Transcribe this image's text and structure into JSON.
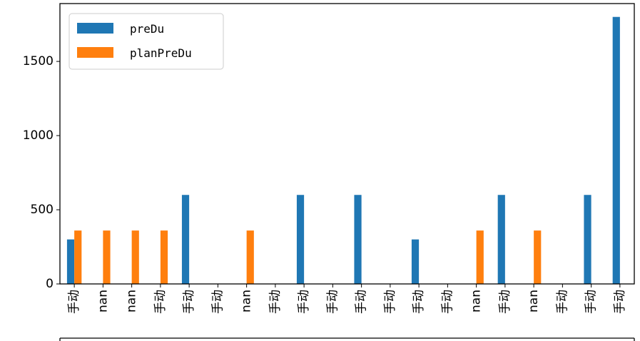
{
  "chart_data": {
    "type": "bar",
    "categories": [
      "手动",
      "nan",
      "nan",
      "手动",
      "手动",
      "手动",
      "nan",
      "手动",
      "手动",
      "手动",
      "手动",
      "手动",
      "手动",
      "手动",
      "nan",
      "手动",
      "nan",
      "手动",
      "手动",
      "手动"
    ],
    "series": [
      {
        "name": "preDu",
        "color": "#1f77b4",
        "values": [
          300,
          0,
          0,
          0,
          600,
          0,
          0,
          0,
          600,
          0,
          600,
          0,
          300,
          0,
          0,
          600,
          0,
          0,
          600,
          1800
        ]
      },
      {
        "name": "planPreDu",
        "color": "#ff7f0e",
        "values": [
          360,
          360,
          360,
          360,
          0,
          0,
          360,
          0,
          0,
          0,
          0,
          0,
          0,
          0,
          360,
          0,
          360,
          0,
          0,
          0
        ]
      }
    ],
    "yticks": [
      0,
      500,
      1000,
      1500
    ],
    "ylim": [
      0,
      1890
    ],
    "title": "",
    "xlabel": "",
    "ylabel": "",
    "legend": "top-left",
    "grid": false
  }
}
